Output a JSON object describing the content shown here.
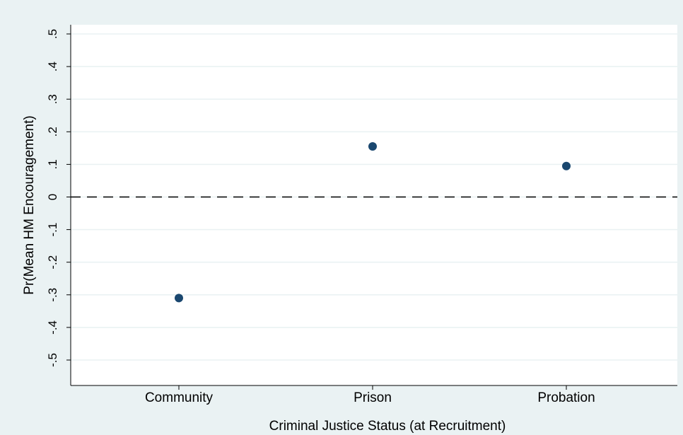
{
  "chart_data": {
    "type": "scatter",
    "title": "",
    "xlabel": "Criminal Justice Status (at Recruitment)",
    "ylabel": "Pr(Mean HM Encouragement)",
    "categories": [
      "Community",
      "Prison",
      "Probation"
    ],
    "values": [
      -0.31,
      0.155,
      0.095
    ],
    "ylim": [
      -0.5,
      0.5
    ],
    "yticks": [
      0.5,
      0.4,
      0.3,
      0.2,
      0.1,
      0,
      -0.1,
      -0.2,
      -0.3,
      -0.4,
      -0.5
    ],
    "ytick_labels": [
      ".5",
      ".4",
      ".3",
      ".2",
      ".1",
      "0",
      "-.1",
      "-.2",
      "-.3",
      "-.4",
      "-.5"
    ],
    "reference_line": {
      "y": 0,
      "style": "dashed"
    },
    "grid": true,
    "legend": false,
    "colors": {
      "background": "#eaf2f3",
      "plot_background": "#ffffff",
      "marker": "#1a476f",
      "grid": "#eaf2f3",
      "axis": "#000000"
    }
  }
}
